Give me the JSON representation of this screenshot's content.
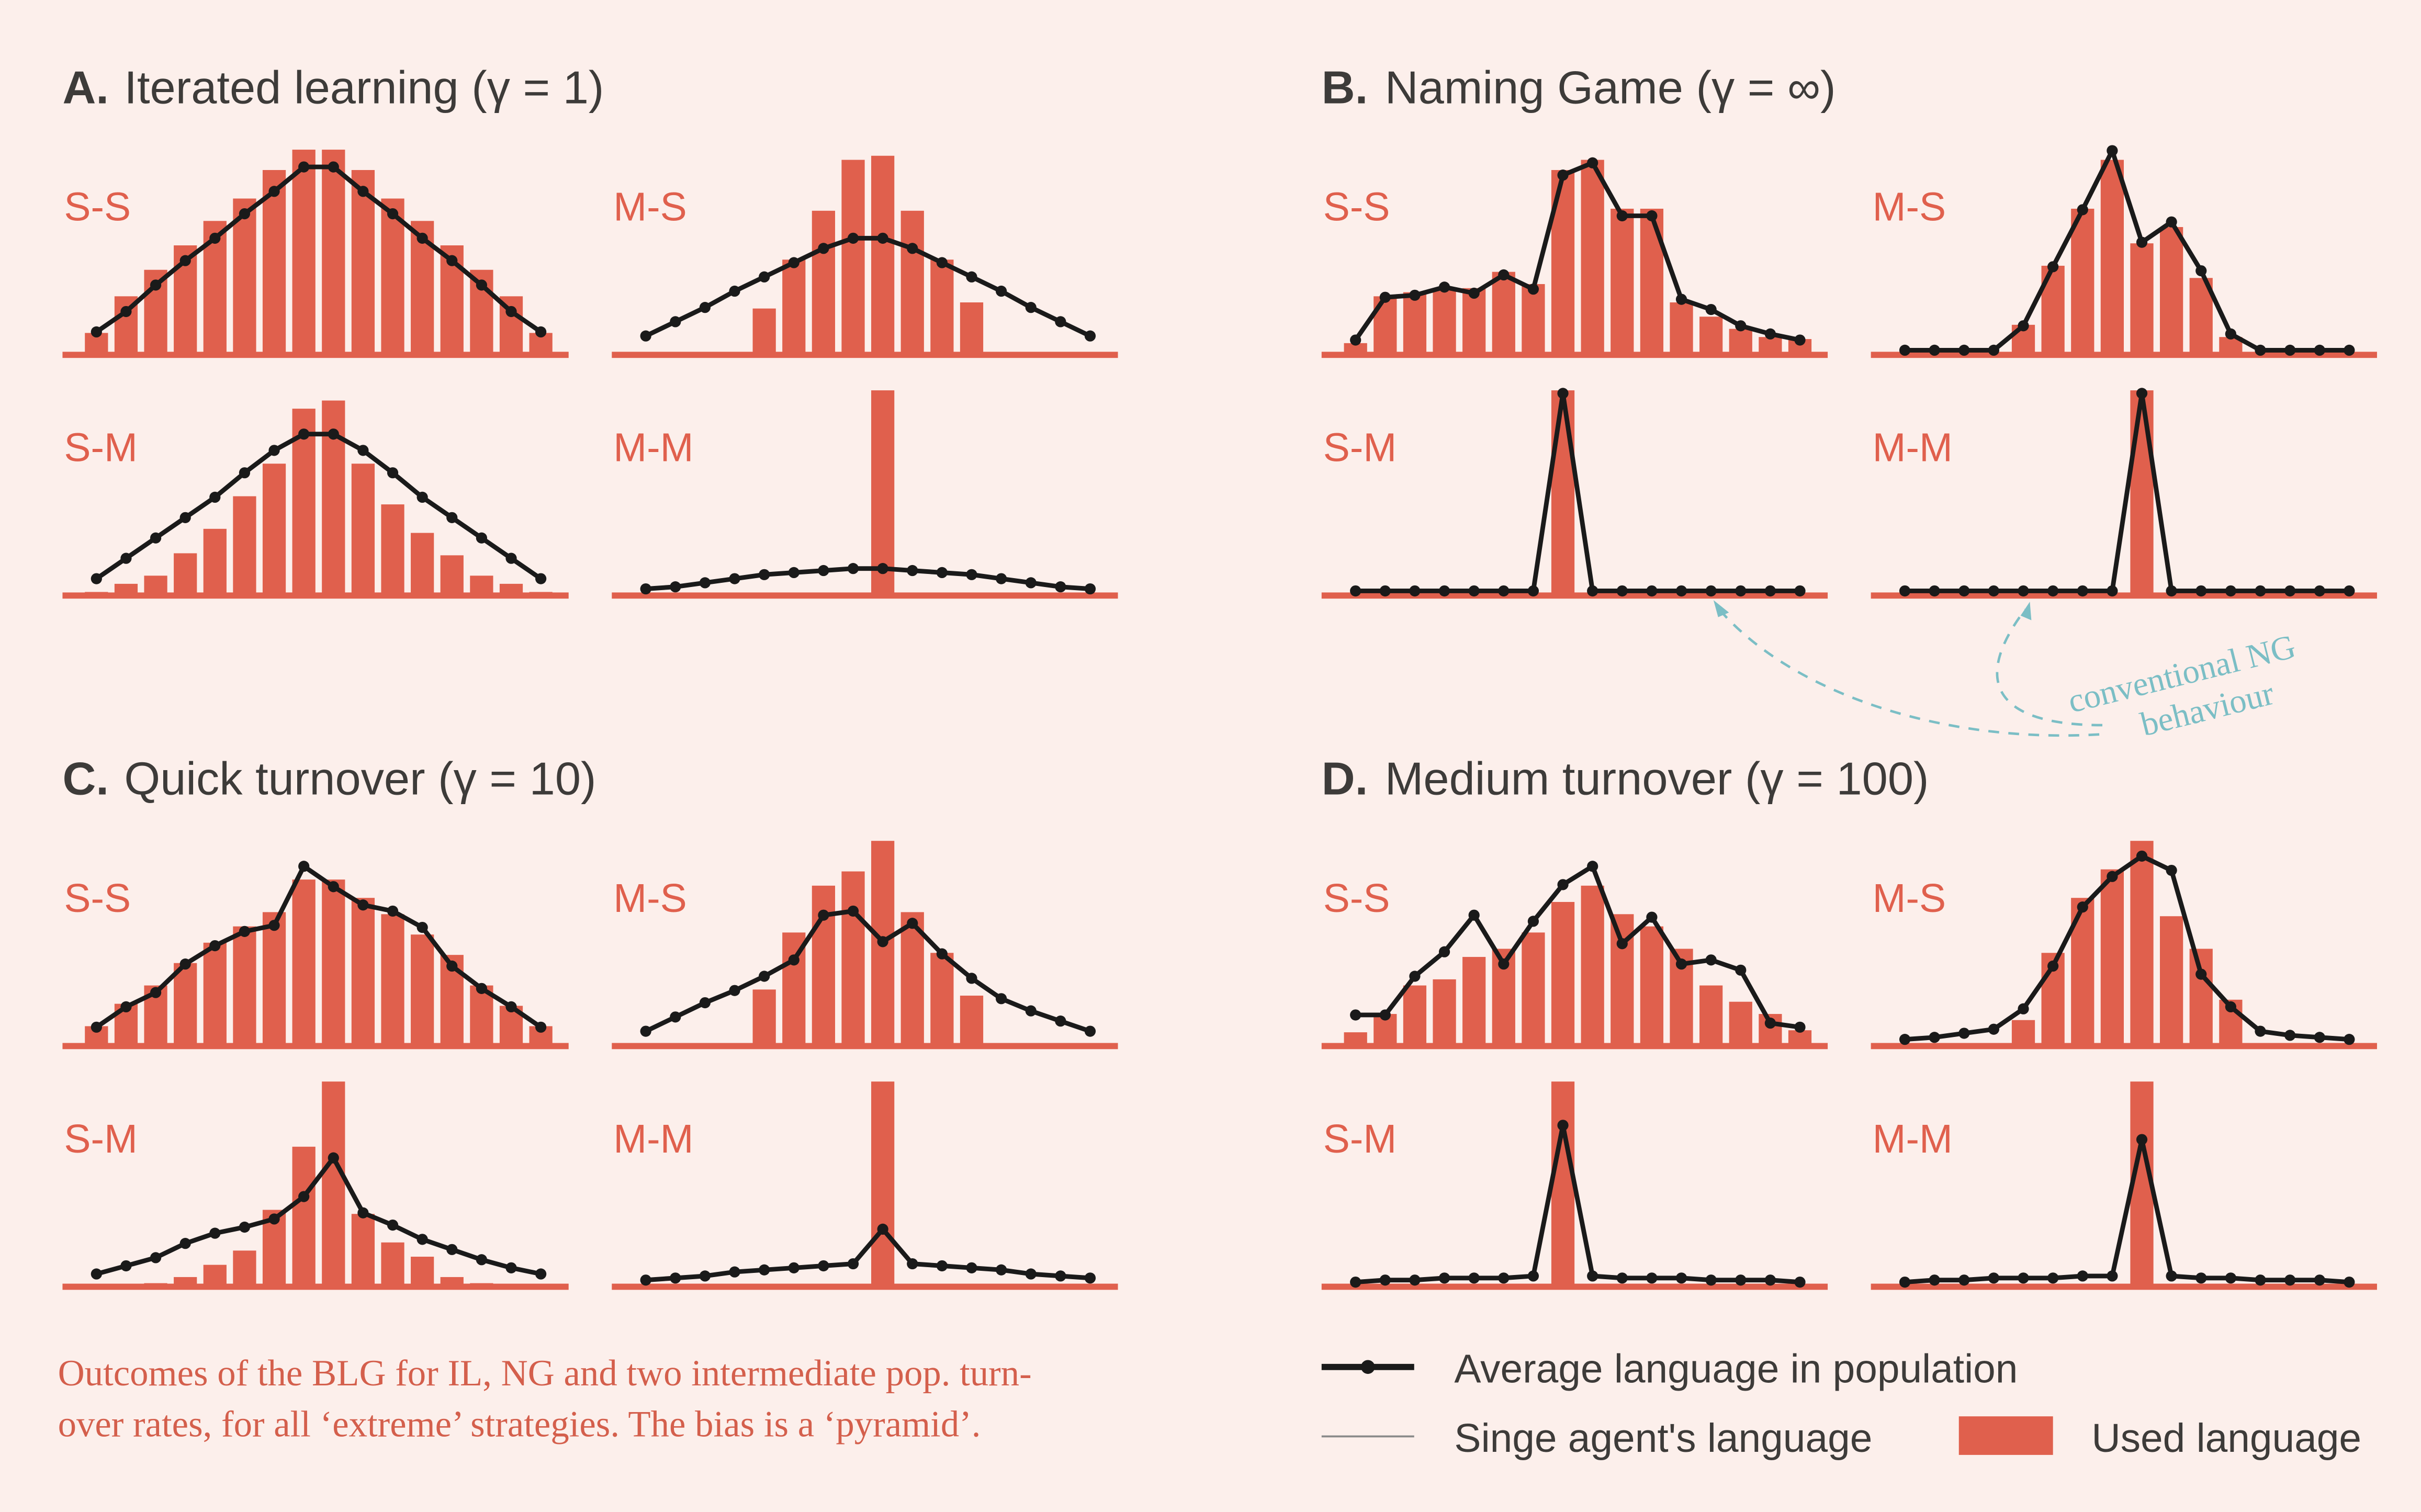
{
  "colors": {
    "background": "#fcefeb",
    "bar": "#e0604d",
    "average_line": "#1a1a1a",
    "agent_line": "#8a8a8a",
    "title": "#3d3b39",
    "annotation": "#7bbec5",
    "caption": "#d45f4c"
  },
  "panels": [
    {
      "letter": "A.",
      "title": "Iterated learning (γ = 1)"
    },
    {
      "letter": "B.",
      "title": "Naming Game (γ = ∞)"
    },
    {
      "letter": "C.",
      "title": "Quick turnover (γ = 10)"
    },
    {
      "letter": "D.",
      "title": "Medium turnover (γ = 100)"
    }
  ],
  "annotation": {
    "line1": "conventional NG",
    "line2": "behaviour"
  },
  "caption": {
    "line1": "Outcomes of the BLG for IL, NG and two intermediate pop. turn-",
    "line2": "over rates, for all ‘extreme’ strategies. The bias is a ‘pyramid’."
  },
  "legend": {
    "average": "Average language in population",
    "agent": "Singe agent's language",
    "used": "Used language"
  },
  "chart_data": [
    {
      "panel": "A",
      "strategy": "S-S",
      "type": "bar+line",
      "bars": [
        0.1,
        0.28,
        0.41,
        0.53,
        0.65,
        0.76,
        0.9,
        1.0,
        1.0,
        0.9,
        0.76,
        0.65,
        0.53,
        0.41,
        0.28,
        0.1
      ],
      "average": [
        0.09,
        0.19,
        0.32,
        0.44,
        0.55,
        0.67,
        0.78,
        0.9,
        0.9,
        0.78,
        0.67,
        0.55,
        0.44,
        0.32,
        0.19,
        0.09
      ]
    },
    {
      "panel": "A",
      "strategy": "M-S",
      "type": "bar+line",
      "bars": [
        0,
        0,
        0,
        0,
        0.22,
        0.46,
        0.7,
        0.95,
        0.97,
        0.7,
        0.46,
        0.25,
        0,
        0,
        0,
        0
      ],
      "average": [
        0.07,
        0.14,
        0.21,
        0.29,
        0.36,
        0.43,
        0.5,
        0.55,
        0.55,
        0.5,
        0.43,
        0.36,
        0.29,
        0.21,
        0.14,
        0.07
      ]
    },
    {
      "panel": "A",
      "strategy": "S-M",
      "type": "bar+line",
      "bars": [
        0.01,
        0.05,
        0.09,
        0.2,
        0.32,
        0.48,
        0.64,
        0.91,
        0.95,
        0.64,
        0.44,
        0.3,
        0.19,
        0.09,
        0.05,
        0.01
      ],
      "average": [
        0.06,
        0.16,
        0.26,
        0.36,
        0.46,
        0.58,
        0.69,
        0.77,
        0.77,
        0.69,
        0.58,
        0.46,
        0.36,
        0.26,
        0.16,
        0.06
      ]
    },
    {
      "panel": "A",
      "strategy": "M-M",
      "type": "bar+line",
      "bars": [
        0,
        0,
        0,
        0,
        0,
        0,
        0,
        0,
        1.0,
        0,
        0,
        0,
        0,
        0,
        0,
        0
      ],
      "average": [
        0.01,
        0.02,
        0.04,
        0.06,
        0.08,
        0.09,
        0.1,
        0.11,
        0.11,
        0.1,
        0.09,
        0.08,
        0.06,
        0.04,
        0.02,
        0.01
      ]
    },
    {
      "panel": "B",
      "strategy": "S-S",
      "type": "bar+line",
      "bars": [
        0.05,
        0.28,
        0.3,
        0.31,
        0.32,
        0.4,
        0.34,
        0.9,
        0.95,
        0.71,
        0.71,
        0.25,
        0.18,
        0.12,
        0.08,
        0.07
      ],
      "average": [
        0.05,
        0.26,
        0.27,
        0.31,
        0.28,
        0.37,
        0.3,
        0.86,
        0.92,
        0.66,
        0.66,
        0.25,
        0.2,
        0.12,
        0.08,
        0.05
      ]
    },
    {
      "panel": "B",
      "strategy": "M-S",
      "type": "bar+line",
      "bars": [
        0,
        0,
        0,
        0,
        0.14,
        0.43,
        0.71,
        0.95,
        0.54,
        0.62,
        0.37,
        0.08,
        0,
        0,
        0,
        0
      ],
      "average": [
        0,
        0,
        0,
        0,
        0.12,
        0.41,
        0.69,
        0.98,
        0.53,
        0.63,
        0.39,
        0.08,
        0,
        0,
        0,
        0
      ]
    },
    {
      "panel": "B",
      "strategy": "S-M",
      "type": "bar+line",
      "bars": [
        0,
        0,
        0,
        0,
        0,
        0,
        0,
        1.0,
        0,
        0,
        0,
        0,
        0,
        0,
        0,
        0
      ],
      "average": [
        0,
        0,
        0,
        0,
        0,
        0,
        0,
        0.97,
        0,
        0,
        0,
        0,
        0,
        0,
        0,
        0
      ]
    },
    {
      "panel": "B",
      "strategy": "M-M",
      "type": "bar+line",
      "bars": [
        0,
        0,
        0,
        0,
        0,
        0,
        0,
        0,
        1.0,
        0,
        0,
        0,
        0,
        0,
        0,
        0
      ],
      "average": [
        0,
        0,
        0,
        0,
        0,
        0,
        0,
        0,
        0.97,
        0,
        0,
        0,
        0,
        0,
        0,
        0
      ]
    },
    {
      "panel": "C",
      "strategy": "S-S",
      "type": "bar+line",
      "bars": [
        0.09,
        0.2,
        0.29,
        0.4,
        0.5,
        0.58,
        0.65,
        0.81,
        0.81,
        0.72,
        0.64,
        0.54,
        0.44,
        0.29,
        0.19,
        0.09
      ],
      "average": [
        0.07,
        0.17,
        0.24,
        0.38,
        0.47,
        0.54,
        0.57,
        0.86,
        0.76,
        0.67,
        0.64,
        0.56,
        0.37,
        0.26,
        0.17,
        0.07
      ]
    },
    {
      "panel": "C",
      "strategy": "M-S",
      "type": "bar+line",
      "bars": [
        0,
        0,
        0,
        0,
        0.27,
        0.55,
        0.78,
        0.85,
        1.0,
        0.65,
        0.45,
        0.24,
        0,
        0,
        0,
        0
      ],
      "average": [
        0.05,
        0.12,
        0.19,
        0.25,
        0.32,
        0.4,
        0.62,
        0.64,
        0.49,
        0.58,
        0.43,
        0.31,
        0.21,
        0.15,
        0.1,
        0.05
      ]
    },
    {
      "panel": "C",
      "strategy": "S-M",
      "type": "bar+line",
      "bars": [
        0,
        0,
        0.01,
        0.04,
        0.1,
        0.17,
        0.37,
        0.68,
        1.0,
        0.35,
        0.21,
        0.14,
        0.04,
        0.01,
        0,
        0
      ],
      "average": [
        0.04,
        0.08,
        0.12,
        0.19,
        0.24,
        0.27,
        0.31,
        0.42,
        0.61,
        0.34,
        0.28,
        0.21,
        0.16,
        0.11,
        0.07,
        0.04
      ]
    },
    {
      "panel": "C",
      "strategy": "M-M",
      "type": "bar+line",
      "bars": [
        0,
        0,
        0,
        0,
        0,
        0,
        0,
        0,
        1.0,
        0,
        0,
        0,
        0,
        0,
        0,
        0
      ],
      "average": [
        0.01,
        0.02,
        0.03,
        0.05,
        0.06,
        0.07,
        0.08,
        0.09,
        0.26,
        0.09,
        0.08,
        0.07,
        0.06,
        0.04,
        0.03,
        0.02
      ]
    },
    {
      "panel": "D",
      "strategy": "S-S",
      "type": "bar+line",
      "bars": [
        0.06,
        0.15,
        0.29,
        0.32,
        0.43,
        0.47,
        0.55,
        0.7,
        0.78,
        0.64,
        0.58,
        0.47,
        0.29,
        0.21,
        0.15,
        0.07
      ],
      "average": [
        0.13,
        0.13,
        0.32,
        0.44,
        0.62,
        0.38,
        0.59,
        0.77,
        0.86,
        0.48,
        0.61,
        0.38,
        0.4,
        0.35,
        0.09,
        0.07
      ]
    },
    {
      "panel": "D",
      "strategy": "M-S",
      "type": "bar+line",
      "bars": [
        0,
        0,
        0,
        0,
        0.12,
        0.45,
        0.72,
        0.86,
        1.0,
        0.63,
        0.47,
        0.22,
        0,
        0,
        0,
        0
      ],
      "average": [
        0.01,
        0.02,
        0.04,
        0.06,
        0.16,
        0.37,
        0.66,
        0.81,
        0.91,
        0.84,
        0.33,
        0.17,
        0.05,
        0.03,
        0.02,
        0.01
      ]
    },
    {
      "panel": "D",
      "strategy": "S-M",
      "type": "bar+line",
      "bars": [
        0,
        0,
        0,
        0,
        0,
        0,
        0,
        1.0,
        0,
        0,
        0,
        0,
        0,
        0,
        0,
        0
      ],
      "average": [
        0,
        0.01,
        0.01,
        0.02,
        0.02,
        0.02,
        0.03,
        0.77,
        0.03,
        0.02,
        0.02,
        0.02,
        0.01,
        0.01,
        0.01,
        0
      ]
    },
    {
      "panel": "D",
      "strategy": "M-M",
      "type": "bar+line",
      "bars": [
        0,
        0,
        0,
        0,
        0,
        0,
        0,
        0,
        1.0,
        0,
        0,
        0,
        0,
        0,
        0,
        0
      ],
      "average": [
        0,
        0.01,
        0.01,
        0.02,
        0.02,
        0.02,
        0.03,
        0.03,
        0.7,
        0.03,
        0.02,
        0.02,
        0.01,
        0.01,
        0.01,
        0
      ]
    }
  ]
}
